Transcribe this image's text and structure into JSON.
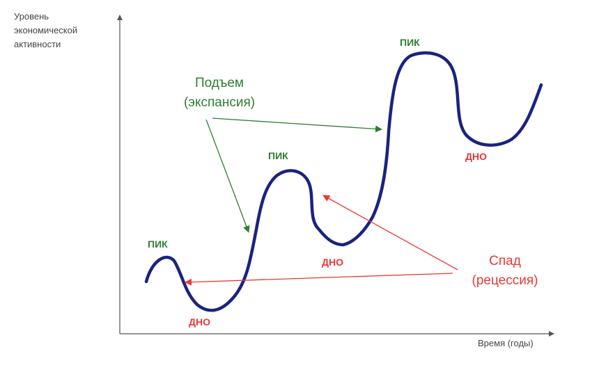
{
  "axes": {
    "y_label": "Уровень\nэкономической\nактивности",
    "x_label": "Время (годы)"
  },
  "marks": {
    "peak_1": "ПИК",
    "peak_2": "ПИК",
    "peak_3": "ПИК",
    "trough_1": "ДНО",
    "trough_2": "ДНО",
    "trough_3": "ДНО"
  },
  "phases": {
    "expansion": "Подъем\n(экспансия)",
    "recession": "Спад\n(рецессия)"
  },
  "colors": {
    "curve": "#1a237e",
    "expansion": "#2e7d32",
    "recession": "#e53935",
    "axis": "#555555"
  }
}
